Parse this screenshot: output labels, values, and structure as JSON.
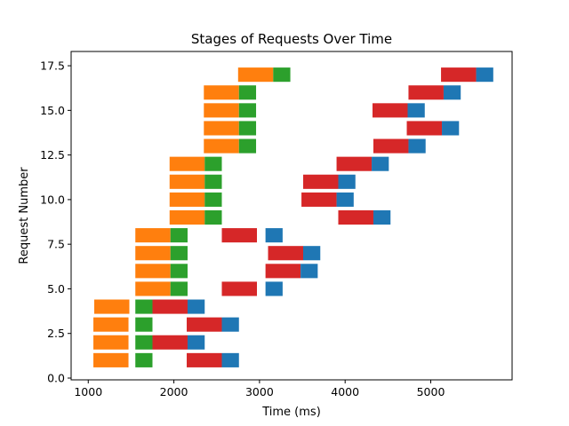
{
  "chart_data": {
    "type": "bar",
    "orientation": "horizontal",
    "title": "Stages of Requests Over Time",
    "xlabel": "Time (ms)",
    "ylabel": "Request Number",
    "xlim": [
      800,
      5950
    ],
    "ylim": [
      -0.1,
      18.3
    ],
    "x_ticks": [
      1000,
      2000,
      3000,
      4000,
      5000
    ],
    "x_tick_labels": [
      "1000",
      "2000",
      "3000",
      "4000",
      "5000"
    ],
    "y_ticks": [
      0.0,
      2.5,
      5.0,
      7.5,
      10.0,
      12.5,
      15.0,
      17.5
    ],
    "y_tick_labels": [
      "0.0",
      "2.5",
      "5.0",
      "7.5",
      "10.0",
      "12.5",
      "15.0",
      "17.5"
    ],
    "grid": false,
    "legend": false,
    "bar_height": 0.8,
    "series": [
      {
        "color": "#ff7f0e",
        "bars": [
          {
            "y": 1,
            "start": 1060,
            "end": 1470
          },
          {
            "y": 2,
            "start": 1060,
            "end": 1470
          },
          {
            "y": 3,
            "start": 1060,
            "end": 1470
          },
          {
            "y": 4,
            "start": 1070,
            "end": 1480
          },
          {
            "y": 5,
            "start": 1550,
            "end": 1960
          },
          {
            "y": 6,
            "start": 1550,
            "end": 1960
          },
          {
            "y": 7,
            "start": 1550,
            "end": 1960
          },
          {
            "y": 8,
            "start": 1550,
            "end": 1960
          },
          {
            "y": 9,
            "start": 1950,
            "end": 2360
          },
          {
            "y": 10,
            "start": 1950,
            "end": 2360
          },
          {
            "y": 11,
            "start": 1950,
            "end": 2360
          },
          {
            "y": 12,
            "start": 1950,
            "end": 2360
          },
          {
            "y": 13,
            "start": 2350,
            "end": 2760
          },
          {
            "y": 14,
            "start": 2350,
            "end": 2760
          },
          {
            "y": 15,
            "start": 2350,
            "end": 2760
          },
          {
            "y": 16,
            "start": 2350,
            "end": 2760
          },
          {
            "y": 17,
            "start": 2750,
            "end": 3160
          }
        ]
      },
      {
        "color": "#2ca02c",
        "bars": [
          {
            "y": 1,
            "start": 1550,
            "end": 1750
          },
          {
            "y": 2,
            "start": 1550,
            "end": 1750
          },
          {
            "y": 3,
            "start": 1550,
            "end": 1750
          },
          {
            "y": 4,
            "start": 1550,
            "end": 1750
          },
          {
            "y": 5,
            "start": 1960,
            "end": 2160
          },
          {
            "y": 6,
            "start": 1960,
            "end": 2160
          },
          {
            "y": 7,
            "start": 1960,
            "end": 2160
          },
          {
            "y": 8,
            "start": 1960,
            "end": 2160
          },
          {
            "y": 9,
            "start": 2360,
            "end": 2560
          },
          {
            "y": 10,
            "start": 2360,
            "end": 2560
          },
          {
            "y": 11,
            "start": 2360,
            "end": 2560
          },
          {
            "y": 12,
            "start": 2360,
            "end": 2560
          },
          {
            "y": 13,
            "start": 2760,
            "end": 2960
          },
          {
            "y": 14,
            "start": 2760,
            "end": 2960
          },
          {
            "y": 15,
            "start": 2760,
            "end": 2960
          },
          {
            "y": 16,
            "start": 2760,
            "end": 2960
          },
          {
            "y": 17,
            "start": 3160,
            "end": 3360
          }
        ]
      },
      {
        "color": "#d62728",
        "bars": [
          {
            "y": 1,
            "start": 2150,
            "end": 2560
          },
          {
            "y": 2,
            "start": 1750,
            "end": 2160
          },
          {
            "y": 3,
            "start": 2150,
            "end": 2560
          },
          {
            "y": 4,
            "start": 1750,
            "end": 2160
          },
          {
            "y": 5,
            "start": 2560,
            "end": 2970
          },
          {
            "y": 6,
            "start": 3070,
            "end": 3480
          },
          {
            "y": 7,
            "start": 3100,
            "end": 3510
          },
          {
            "y": 8,
            "start": 2560,
            "end": 2970
          },
          {
            "y": 9,
            "start": 3920,
            "end": 4330
          },
          {
            "y": 10,
            "start": 3490,
            "end": 3900
          },
          {
            "y": 11,
            "start": 3510,
            "end": 3920
          },
          {
            "y": 12,
            "start": 3900,
            "end": 4310
          },
          {
            "y": 13,
            "start": 4330,
            "end": 4740
          },
          {
            "y": 14,
            "start": 4720,
            "end": 5130
          },
          {
            "y": 15,
            "start": 4320,
            "end": 4730
          },
          {
            "y": 16,
            "start": 4740,
            "end": 5150
          },
          {
            "y": 17,
            "start": 5120,
            "end": 5530
          }
        ]
      },
      {
        "color": "#1f77b4",
        "bars": [
          {
            "y": 1,
            "start": 2560,
            "end": 2760
          },
          {
            "y": 2,
            "start": 2160,
            "end": 2360
          },
          {
            "y": 3,
            "start": 2560,
            "end": 2760
          },
          {
            "y": 4,
            "start": 2160,
            "end": 2360
          },
          {
            "y": 5,
            "start": 3070,
            "end": 3270
          },
          {
            "y": 6,
            "start": 3480,
            "end": 3680
          },
          {
            "y": 7,
            "start": 3510,
            "end": 3710
          },
          {
            "y": 8,
            "start": 3070,
            "end": 3270
          },
          {
            "y": 9,
            "start": 4330,
            "end": 4530
          },
          {
            "y": 10,
            "start": 3900,
            "end": 4100
          },
          {
            "y": 11,
            "start": 3920,
            "end": 4120
          },
          {
            "y": 12,
            "start": 4310,
            "end": 4510
          },
          {
            "y": 13,
            "start": 4740,
            "end": 4940
          },
          {
            "y": 14,
            "start": 5130,
            "end": 5330
          },
          {
            "y": 15,
            "start": 4730,
            "end": 4930
          },
          {
            "y": 16,
            "start": 5150,
            "end": 5350
          },
          {
            "y": 17,
            "start": 5530,
            "end": 5730
          }
        ]
      }
    ]
  }
}
